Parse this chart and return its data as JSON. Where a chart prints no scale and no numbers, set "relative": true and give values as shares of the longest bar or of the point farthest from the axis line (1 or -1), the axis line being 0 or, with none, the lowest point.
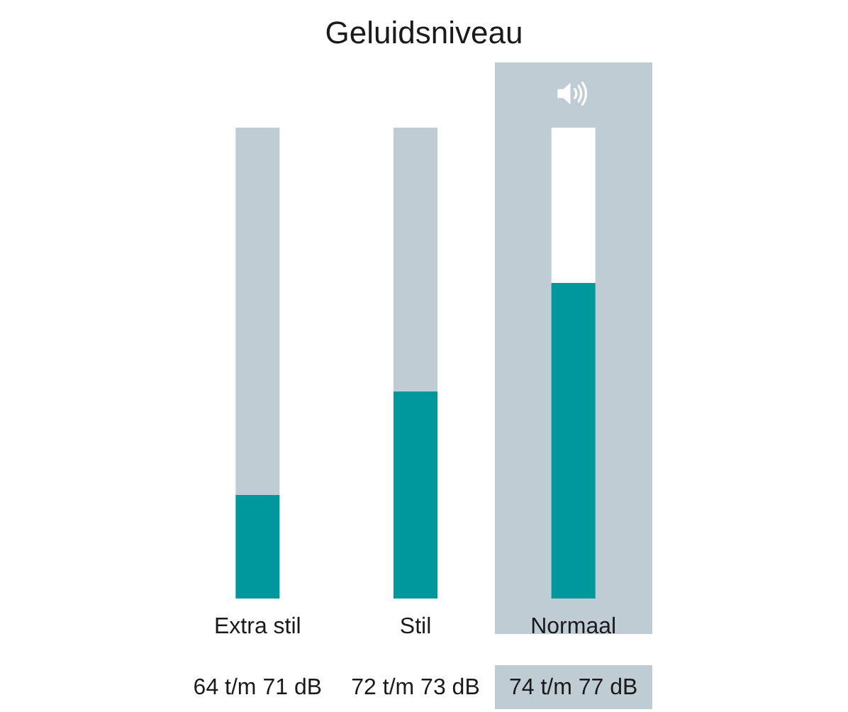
{
  "chart_data": {
    "type": "bar",
    "title": "Geluidsniveau",
    "categories": [
      "Extra stil",
      "Stil",
      "Normaal"
    ],
    "stacked": true,
    "relative": true,
    "series": [
      {
        "color": "#00979d",
        "values": [
          0.22,
          0.44,
          0.67
        ]
      },
      {
        "colors": [
          "#bfccd4",
          "#bfccd4",
          "#ffffff"
        ],
        "values": [
          0.78,
          0.56,
          0.33
        ]
      }
    ],
    "annotations": [
      "64 t/m 71 dB",
      "72 t/m 73 dB",
      "74 t/m 77 dB"
    ]
  }
}
